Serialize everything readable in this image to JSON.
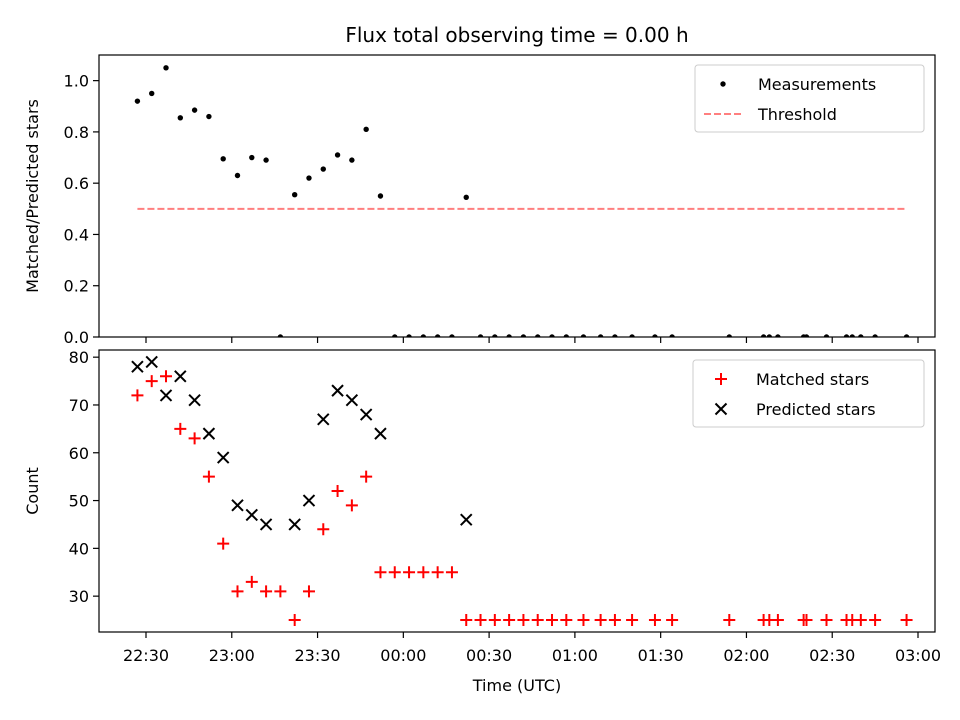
{
  "chart_data": {
    "title": "Flux total observing time = 0.00 h",
    "xlabel": "Time (UTC)",
    "x_tick_labels": [
      "22:30",
      "23:00",
      "23:30",
      "00:00",
      "00:30",
      "01:00",
      "01:30",
      "02:00",
      "02:30",
      "03:00"
    ],
    "panels": [
      {
        "type": "scatter",
        "ylabel": "Matched/Predicted stars",
        "ylim": [
          0,
          1.1
        ],
        "yticks": [
          "0.0",
          "0.2",
          "0.4",
          "0.6",
          "0.8",
          "1.0"
        ],
        "legend_position": "top-right",
        "series": [
          {
            "name": "Measurements",
            "marker": "dot",
            "color": "#000000",
            "points": [
              [
                "22:27",
                0.92
              ],
              [
                "22:32",
                0.95
              ],
              [
                "22:37",
                1.05
              ],
              [
                "22:42",
                0.855
              ],
              [
                "22:47",
                0.885
              ],
              [
                "22:52",
                0.86
              ],
              [
                "22:57",
                0.695
              ],
              [
                "23:02",
                0.63
              ],
              [
                "23:07",
                0.7
              ],
              [
                "23:12",
                0.69
              ],
              [
                "23:17",
                0.0
              ],
              [
                "23:22",
                0.555
              ],
              [
                "23:27",
                0.62
              ],
              [
                "23:32",
                0.655
              ],
              [
                "23:37",
                0.71
              ],
              [
                "23:42",
                0.69
              ],
              [
                "23:47",
                0.81
              ],
              [
                "23:52",
                0.55
              ],
              [
                "23:57",
                0.0
              ],
              [
                "00:02",
                0.0
              ],
              [
                "00:07",
                0.0
              ],
              [
                "00:12",
                0.0
              ],
              [
                "00:17",
                0.0
              ],
              [
                "00:22",
                0.545
              ],
              [
                "00:27",
                0.0
              ],
              [
                "00:32",
                0.0
              ],
              [
                "00:37",
                0.0
              ],
              [
                "00:42",
                0.0
              ],
              [
                "00:47",
                0.0
              ],
              [
                "00:52",
                0.0
              ],
              [
                "00:57",
                0.0
              ],
              [
                "01:03",
                0.0
              ],
              [
                "01:09",
                0.0
              ],
              [
                "01:14",
                0.0
              ],
              [
                "01:20",
                0.0
              ],
              [
                "01:28",
                0.0
              ],
              [
                "01:34",
                0.0
              ],
              [
                "01:54",
                0.0
              ],
              [
                "02:06",
                0.0
              ],
              [
                "02:08",
                0.0
              ],
              [
                "02:11",
                0.0
              ],
              [
                "02:20",
                0.0
              ],
              [
                "02:21",
                0.0
              ],
              [
                "02:28",
                0.0
              ],
              [
                "02:35",
                0.0
              ],
              [
                "02:37",
                0.0
              ],
              [
                "02:40",
                0.0
              ],
              [
                "02:45",
                0.0
              ],
              [
                "02:56",
                0.0
              ]
            ]
          },
          {
            "name": "Threshold",
            "marker": "dashed-line",
            "color": "#ff7f7f",
            "points": [
              [
                "22:27",
                0.5
              ],
              [
                "02:56",
                0.5
              ]
            ]
          }
        ]
      },
      {
        "type": "scatter",
        "ylabel": "Count",
        "ylim": [
          22.5,
          81.5
        ],
        "yticks": [
          "30",
          "40",
          "50",
          "60",
          "70",
          "80"
        ],
        "legend_position": "top-right",
        "series": [
          {
            "name": "Matched stars",
            "marker": "plus",
            "color": "#ff0000",
            "points": [
              [
                "22:27",
                72
              ],
              [
                "22:32",
                75
              ],
              [
                "22:37",
                76
              ],
              [
                "22:42",
                65
              ],
              [
                "22:47",
                63
              ],
              [
                "22:52",
                55
              ],
              [
                "22:57",
                41
              ],
              [
                "23:02",
                31
              ],
              [
                "23:07",
                33
              ],
              [
                "23:12",
                31
              ],
              [
                "23:17",
                31
              ],
              [
                "23:22",
                25
              ],
              [
                "23:27",
                31
              ],
              [
                "23:32",
                44
              ],
              [
                "23:37",
                52
              ],
              [
                "23:42",
                49
              ],
              [
                "23:47",
                55
              ],
              [
                "23:52",
                35
              ],
              [
                "23:57",
                35
              ],
              [
                "00:02",
                35
              ],
              [
                "00:07",
                35
              ],
              [
                "00:12",
                35
              ],
              [
                "00:17",
                35
              ],
              [
                "00:22",
                25
              ],
              [
                "00:27",
                25
              ],
              [
                "00:32",
                25
              ],
              [
                "00:37",
                25
              ],
              [
                "00:42",
                25
              ],
              [
                "00:47",
                25
              ],
              [
                "00:52",
                25
              ],
              [
                "00:57",
                25
              ],
              [
                "01:03",
                25
              ],
              [
                "01:09",
                25
              ],
              [
                "01:14",
                25
              ],
              [
                "01:20",
                25
              ],
              [
                "01:28",
                25
              ],
              [
                "01:34",
                25
              ],
              [
                "01:54",
                25
              ],
              [
                "02:06",
                25
              ],
              [
                "02:08",
                25
              ],
              [
                "02:11",
                25
              ],
              [
                "02:20",
                25
              ],
              [
                "02:21",
                25
              ],
              [
                "02:28",
                25
              ],
              [
                "02:35",
                25
              ],
              [
                "02:37",
                25
              ],
              [
                "02:40",
                25
              ],
              [
                "02:45",
                25
              ],
              [
                "02:56",
                25
              ]
            ]
          },
          {
            "name": "Predicted stars",
            "marker": "x",
            "color": "#000000",
            "points": [
              [
                "22:27",
                78
              ],
              [
                "22:32",
                79
              ],
              [
                "22:37",
                72
              ],
              [
                "22:42",
                76
              ],
              [
                "22:47",
                71
              ],
              [
                "22:52",
                64
              ],
              [
                "22:57",
                59
              ],
              [
                "23:02",
                49
              ],
              [
                "23:07",
                47
              ],
              [
                "23:12",
                45
              ],
              [
                "23:22",
                45
              ],
              [
                "23:27",
                50
              ],
              [
                "23:32",
                67
              ],
              [
                "23:37",
                73
              ],
              [
                "23:42",
                71
              ],
              [
                "23:47",
                68
              ],
              [
                "23:52",
                64
              ],
              [
                "00:22",
                46
              ]
            ]
          }
        ]
      }
    ]
  }
}
